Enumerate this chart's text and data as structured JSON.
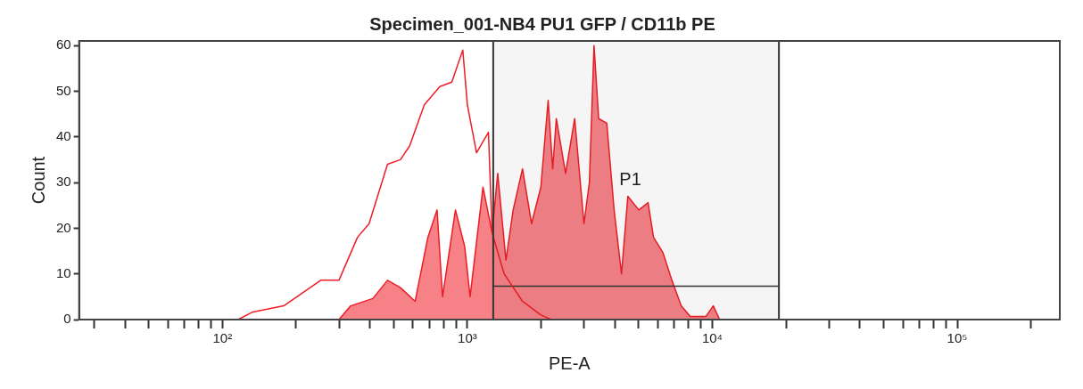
{
  "chart_data": {
    "type": "area",
    "title": "Specimen_001-NB4 PU1 GFP / CD11b PE",
    "xlabel": "PE-A",
    "ylabel": "Count",
    "log": "x",
    "xlim": [
      26,
      262144
    ],
    "ylim": [
      0,
      61
    ],
    "yticks": [
      0,
      10,
      20,
      30,
      40,
      50,
      60
    ],
    "xticks": [
      {
        "value": 30,
        "label": null
      },
      {
        "value": 40,
        "label": null
      },
      {
        "value": 50,
        "label": null
      },
      {
        "value": 60,
        "label": null
      },
      {
        "value": 70,
        "label": null
      },
      {
        "value": 80,
        "label": null
      },
      {
        "value": 90,
        "label": null
      },
      {
        "value": 100,
        "label": "10²"
      },
      {
        "value": 200,
        "label": null
      },
      {
        "value": 300,
        "label": null
      },
      {
        "value": 400,
        "label": null
      },
      {
        "value": 500,
        "label": null
      },
      {
        "value": 600,
        "label": null
      },
      {
        "value": 700,
        "label": null
      },
      {
        "value": 800,
        "label": null
      },
      {
        "value": 900,
        "label": null
      },
      {
        "value": 1000,
        "label": "10³"
      },
      {
        "value": 2000,
        "label": null
      },
      {
        "value": 3000,
        "label": null
      },
      {
        "value": 4000,
        "label": null
      },
      {
        "value": 5000,
        "label": null
      },
      {
        "value": 6000,
        "label": null
      },
      {
        "value": 7000,
        "label": null
      },
      {
        "value": 8000,
        "label": null
      },
      {
        "value": 9000,
        "label": null
      },
      {
        "value": 10000,
        "label": "10⁴"
      },
      {
        "value": 20000,
        "label": null
      },
      {
        "value": 30000,
        "label": null
      },
      {
        "value": 40000,
        "label": null
      },
      {
        "value": 50000,
        "label": null
      },
      {
        "value": 60000,
        "label": null
      },
      {
        "value": 70000,
        "label": null
      },
      {
        "value": 80000,
        "label": null
      },
      {
        "value": 90000,
        "label": null
      },
      {
        "value": 100000,
        "label": "10⁵"
      },
      {
        "value": 200000,
        "label": null
      }
    ],
    "grid": false,
    "legend": false,
    "marker": "none",
    "series": [
      {
        "type": "line",
        "color": "#ee1c24",
        "x": [
          116,
          132,
          178,
          252,
          299,
          356,
          397,
          472,
          533,
          581,
          667,
          772,
          864,
          958,
          1000,
          1090,
          1219,
          1262,
          1413,
          1679,
          1995,
          2200
        ],
        "values": [
          0,
          1.6,
          3,
          8.6,
          8.6,
          18,
          21,
          34,
          35,
          38,
          47,
          51,
          52,
          59,
          47,
          36.5,
          41,
          19,
          10,
          4,
          1,
          0
        ]
      },
      {
        "type": "line",
        "color": "#333333",
        "x": [
          1275,
          18700
        ],
        "values": [
          7.3,
          7.3
        ]
      },
      {
        "color": "#ee1c24",
        "x": [
          299,
          334,
          411,
          472,
          533,
          612,
          690,
          752,
          792,
          894,
          975,
          1026,
          1158,
          1262,
          1330,
          1437,
          1538,
          1679,
          1828,
          1995,
          2137,
          2230,
          2307,
          2517,
          2742,
          2992,
          3148,
          3289,
          3436,
          3707,
          3973,
          4258,
          4520,
          5012,
          5466,
          5754,
          6281,
          6839,
          7464,
          8128,
          9419,
          10090,
          10715
        ],
        "values": [
          0,
          3,
          4.6,
          8.6,
          7,
          4,
          18,
          24,
          5,
          24,
          16,
          5,
          29,
          19,
          32,
          13,
          24,
          33,
          21,
          29,
          48,
          33,
          44,
          32,
          44,
          21,
          30,
          60,
          44,
          43,
          24,
          10,
          27,
          24,
          25.6,
          18,
          14.7,
          8.6,
          3,
          0.7,
          0.7,
          3,
          0
        ]
      }
    ],
    "ref_lines": [
      {
        "axis": "x",
        "value": 1275,
        "color": "#333333"
      },
      {
        "axis": "x",
        "value": 18700,
        "color": "#333333"
      }
    ],
    "bands": [
      {
        "axis": "x",
        "from": 1275,
        "to": 18700,
        "label": "P1",
        "color": "#333333"
      }
    ]
  }
}
